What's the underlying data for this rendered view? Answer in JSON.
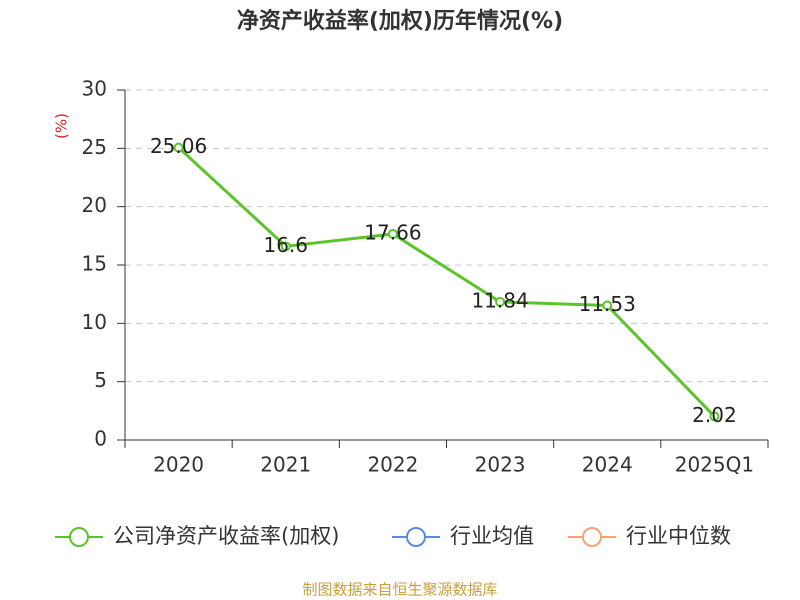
{
  "chart_data": {
    "type": "line",
    "title": "净资产收益率(加权)历年情况(%)",
    "y_label": "(%)",
    "categories": [
      "2020",
      "2021",
      "2022",
      "2023",
      "2024",
      "2025Q1"
    ],
    "series": [
      {
        "name": "公司净资产收益率(加权)",
        "color": "#5cc42a",
        "values": [
          25.06,
          16.6,
          17.66,
          11.84,
          11.53,
          2.02
        ]
      },
      {
        "name": "行业均值",
        "color": "#5b8bdf",
        "values": [
          null,
          null,
          null,
          null,
          null,
          null
        ]
      },
      {
        "name": "行业中位数",
        "color": "#f4a27a",
        "values": [
          null,
          null,
          null,
          null,
          null,
          null
        ]
      }
    ],
    "ylim": [
      0,
      30
    ],
    "yticks": [
      0,
      5,
      10,
      15,
      20,
      25,
      30
    ],
    "grid": true,
    "legend": "bottom",
    "source": "制图数据来自恒生聚源数据库"
  }
}
